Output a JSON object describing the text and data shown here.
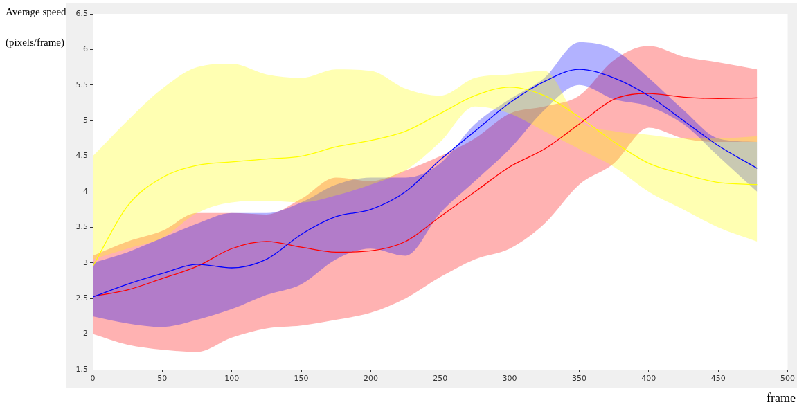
{
  "chart_data": {
    "type": "line",
    "ylabel": "Average speed\n\n(pixels/frame)",
    "xlabel": "frame",
    "x": [
      0,
      25,
      50,
      75,
      100,
      125,
      150,
      175,
      200,
      225,
      250,
      275,
      300,
      325,
      350,
      375,
      400,
      425,
      450,
      478
    ],
    "xlim": [
      0,
      500
    ],
    "xticks": [
      0,
      50,
      100,
      150,
      200,
      250,
      300,
      350,
      400,
      450,
      500
    ],
    "ylim": [
      1.5,
      6.5
    ],
    "yticks": [
      1.5,
      2,
      2.5,
      3,
      3.5,
      4,
      4.5,
      5,
      5.5,
      6,
      6.5
    ],
    "grid": false,
    "legend": false,
    "marker": "none",
    "line_style": "solid",
    "series": [
      {
        "color": "#ffff00",
        "values": [
          2.95,
          3.8,
          4.2,
          4.37,
          4.42,
          4.46,
          4.5,
          4.63,
          4.72,
          4.85,
          5.1,
          5.35,
          5.47,
          5.35,
          5.05,
          4.7,
          4.4,
          4.25,
          4.13,
          4.1
        ],
        "lower": [
          3.05,
          3.2,
          3.35,
          3.7,
          3.85,
          3.87,
          3.85,
          3.95,
          4.1,
          4.3,
          4.7,
          5.2,
          5.1,
          4.85,
          4.6,
          4.35,
          4.0,
          3.75,
          3.5,
          3.3
        ],
        "upper": [
          4.5,
          5.0,
          5.45,
          5.75,
          5.8,
          5.65,
          5.6,
          5.72,
          5.7,
          5.45,
          5.35,
          5.6,
          5.65,
          5.7,
          5.0,
          4.85,
          4.8,
          4.75,
          4.75,
          4.78
        ]
      },
      {
        "color": "#0000ff",
        "values": [
          2.52,
          2.7,
          2.85,
          2.98,
          2.93,
          3.05,
          3.4,
          3.65,
          3.75,
          4.0,
          4.45,
          4.85,
          5.25,
          5.55,
          5.72,
          5.6,
          5.35,
          5.0,
          4.65,
          4.33
        ],
        "lower": [
          2.25,
          2.15,
          2.1,
          2.2,
          2.35,
          2.55,
          2.7,
          3.05,
          3.2,
          3.1,
          3.7,
          4.15,
          4.6,
          5.15,
          5.5,
          5.3,
          5.2,
          4.95,
          4.5,
          4.0
        ],
        "upper": [
          3.0,
          3.15,
          3.35,
          3.55,
          3.7,
          3.7,
          3.85,
          4.1,
          4.2,
          4.2,
          4.4,
          4.95,
          5.3,
          5.6,
          6.1,
          6.0,
          5.6,
          5.15,
          4.75,
          4.7
        ]
      },
      {
        "color": "#ff0000",
        "values": [
          2.53,
          2.62,
          2.78,
          2.95,
          3.2,
          3.3,
          3.22,
          3.15,
          3.17,
          3.3,
          3.65,
          4.0,
          4.35,
          4.6,
          4.95,
          5.3,
          5.38,
          5.33,
          5.31,
          5.32
        ],
        "lower": [
          2.0,
          1.85,
          1.78,
          1.75,
          1.95,
          2.08,
          2.12,
          2.2,
          2.3,
          2.5,
          2.8,
          3.05,
          3.2,
          3.55,
          4.1,
          4.4,
          4.9,
          4.75,
          4.7,
          4.7
        ],
        "upper": [
          3.1,
          3.3,
          3.45,
          3.7,
          3.7,
          3.68,
          3.9,
          4.2,
          4.15,
          4.3,
          4.5,
          4.75,
          5.1,
          5.2,
          5.35,
          5.85,
          6.05,
          5.9,
          5.82,
          5.72
        ]
      }
    ]
  }
}
